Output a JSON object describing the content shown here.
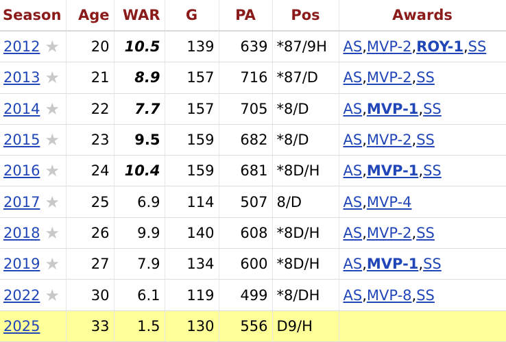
{
  "headers": {
    "season": "Season",
    "age": "Age",
    "war": "WAR",
    "g": "G",
    "pa": "PA",
    "pos": "Pos",
    "awards": "Awards"
  },
  "rows": [
    {
      "season": "2012",
      "age": "20",
      "war": "10.5",
      "war_bold": true,
      "war_italic": true,
      "g": "139",
      "pa": "639",
      "pos": "*87/9H",
      "awards": [
        {
          "text": "AS"
        },
        {
          "text": "MVP-2"
        },
        {
          "text": "ROY-1",
          "bold": true
        },
        {
          "text": "SS"
        }
      ]
    },
    {
      "season": "2013",
      "age": "21",
      "war": "8.9",
      "war_bold": true,
      "war_italic": true,
      "g": "157",
      "pa": "716",
      "pos": "*87/D",
      "awards": [
        {
          "text": "AS"
        },
        {
          "text": "MVP-2"
        },
        {
          "text": "SS"
        }
      ]
    },
    {
      "season": "2014",
      "age": "22",
      "war": "7.7",
      "war_bold": true,
      "war_italic": true,
      "g": "157",
      "pa": "705",
      "pos": "*8/D",
      "awards": [
        {
          "text": "AS"
        },
        {
          "text": "MVP-1",
          "bold": true
        },
        {
          "text": "SS"
        }
      ]
    },
    {
      "season": "2015",
      "age": "23",
      "war": "9.5",
      "war_bold": true,
      "war_italic": false,
      "g": "159",
      "pa": "682",
      "pos": "*8/D",
      "awards": [
        {
          "text": "AS"
        },
        {
          "text": "MVP-2"
        },
        {
          "text": "SS"
        }
      ]
    },
    {
      "season": "2016",
      "age": "24",
      "war": "10.4",
      "war_bold": true,
      "war_italic": true,
      "g": "159",
      "pa": "681",
      "pos": "*8D/H",
      "awards": [
        {
          "text": "AS"
        },
        {
          "text": "MVP-1",
          "bold": true
        },
        {
          "text": "SS"
        }
      ]
    },
    {
      "season": "2017",
      "age": "25",
      "war": "6.9",
      "war_bold": false,
      "war_italic": false,
      "g": "114",
      "pa": "507",
      "pos": "8/D",
      "awards": [
        {
          "text": "AS"
        },
        {
          "text": "MVP-4"
        }
      ]
    },
    {
      "season": "2018",
      "age": "26",
      "war": "9.9",
      "war_bold": false,
      "war_italic": false,
      "g": "140",
      "pa": "608",
      "pos": "*8D/H",
      "awards": [
        {
          "text": "AS"
        },
        {
          "text": "MVP-2"
        },
        {
          "text": "SS"
        }
      ]
    },
    {
      "season": "2019",
      "age": "27",
      "war": "7.9",
      "war_bold": false,
      "war_italic": false,
      "g": "134",
      "pa": "600",
      "pos": "*8D/H",
      "awards": [
        {
          "text": "AS"
        },
        {
          "text": "MVP-1",
          "bold": true
        },
        {
          "text": "SS"
        }
      ]
    },
    {
      "season": "2022",
      "age": "30",
      "war": "6.1",
      "war_bold": false,
      "war_italic": false,
      "g": "119",
      "pa": "499",
      "pos": "*8/DH",
      "awards": [
        {
          "text": "AS"
        },
        {
          "text": "MVP-8"
        },
        {
          "text": "SS"
        }
      ]
    },
    {
      "season": "2025",
      "age": "33",
      "war": "1.5",
      "war_bold": false,
      "war_italic": false,
      "g": "130",
      "pa": "556",
      "pos": "D9/H",
      "awards": [],
      "current": true
    }
  ],
  "colors": {
    "header_text": "#8b1a1a",
    "link": "#2046b8",
    "current_row_bg": "#ffff99",
    "star": "#c8c8c8"
  },
  "icons": {
    "star": "star-icon"
  }
}
